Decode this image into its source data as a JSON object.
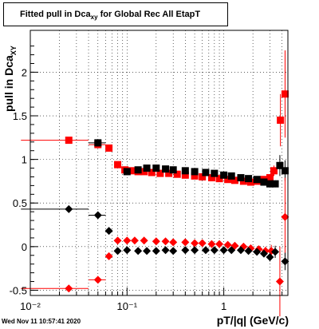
{
  "title": {
    "prefix": "Fitted pull in Dca",
    "sub": "xy",
    "suffix": " for Global Rec All EtapT"
  },
  "ylabel": {
    "prefix": "pull in Dca",
    "sub": "XY"
  },
  "xlabel": "pT/|q| (GeV/c)",
  "datestamp": "Wed Nov 11 10:57:41 2020",
  "chart_data": {
    "type": "scatter",
    "xscale": "log",
    "xlim": [
      0.01,
      4.6
    ],
    "ylim": [
      -0.56,
      2.48
    ],
    "xticks": [
      {
        "v": 0.01,
        "label": "10⁻²"
      },
      {
        "v": 0.1,
        "label": "10⁻¹"
      },
      {
        "v": 1,
        "label": "1"
      }
    ],
    "yticks": [
      -0.5,
      0,
      0.5,
      1,
      1.5,
      2
    ],
    "ytick_labels": [
      "-0.5",
      "0",
      "0.5",
      "1",
      "1.5",
      "2"
    ],
    "grid": true,
    "colors": {
      "red_series": "#ff0000",
      "black_series": "#000000"
    },
    "series": [
      {
        "marker": "square",
        "color": "#ff0000",
        "points": [
          [
            0.025,
            1.22
          ],
          [
            0.05,
            1.17
          ],
          [
            0.065,
            1.13
          ],
          [
            0.08,
            0.94
          ],
          [
            0.095,
            0.88
          ],
          [
            0.11,
            0.87
          ],
          [
            0.13,
            0.86
          ],
          [
            0.15,
            0.86
          ],
          [
            0.18,
            0.85
          ],
          [
            0.22,
            0.84
          ],
          [
            0.27,
            0.84
          ],
          [
            0.33,
            0.83
          ],
          [
            0.4,
            0.82
          ],
          [
            0.5,
            0.81
          ],
          [
            0.6,
            0.8
          ],
          [
            0.75,
            0.79
          ],
          [
            0.9,
            0.78
          ],
          [
            1.1,
            0.77
          ],
          [
            1.3,
            0.76
          ],
          [
            1.6,
            0.75
          ],
          [
            1.9,
            0.74
          ],
          [
            2.2,
            0.75
          ],
          [
            2.6,
            0.77
          ],
          [
            3.0,
            0.79
          ],
          [
            3.3,
            0.87
          ],
          [
            3.85,
            1.45
          ],
          [
            4.3,
            1.75
          ]
        ],
        "yerr": [
          0,
          0,
          0,
          0,
          0,
          0,
          0,
          0,
          0,
          0,
          0,
          0,
          0,
          0,
          0,
          0,
          0,
          0,
          0,
          0,
          0,
          0,
          0.03,
          0.04,
          0.06,
          0.3,
          0.5
        ]
      },
      {
        "marker": "square",
        "color": "#000000",
        "points": [
          [
            0.05,
            1.19
          ],
          [
            0.1,
            0.86
          ],
          [
            0.13,
            0.88
          ],
          [
            0.16,
            0.9
          ],
          [
            0.2,
            0.9
          ],
          [
            0.25,
            0.89
          ],
          [
            0.3,
            0.88
          ],
          [
            0.4,
            0.87
          ],
          [
            0.5,
            0.86
          ],
          [
            0.65,
            0.85
          ],
          [
            0.8,
            0.84
          ],
          [
            1.0,
            0.82
          ],
          [
            1.2,
            0.81
          ],
          [
            1.5,
            0.79
          ],
          [
            1.8,
            0.78
          ],
          [
            2.2,
            0.77
          ],
          [
            2.6,
            0.74
          ],
          [
            3.0,
            0.72
          ],
          [
            3.4,
            0.72
          ],
          [
            3.8,
            0.93
          ],
          [
            4.3,
            0.87
          ]
        ],
        "yerr": [
          0,
          0,
          0,
          0,
          0,
          0,
          0,
          0,
          0,
          0,
          0,
          0,
          0,
          0,
          0,
          0,
          0,
          0.03,
          0.04,
          0.12,
          0.12
        ]
      },
      {
        "marker": "diamond",
        "color": "#ff0000",
        "points": [
          [
            0.025,
            -0.48
          ],
          [
            0.05,
            -0.38
          ],
          [
            0.065,
            -0.11
          ],
          [
            0.08,
            0.07
          ],
          [
            0.1,
            0.07
          ],
          [
            0.12,
            0.07
          ],
          [
            0.15,
            0.07
          ],
          [
            0.2,
            0.06
          ],
          [
            0.25,
            0.06
          ],
          [
            0.3,
            0.05
          ],
          [
            0.4,
            0.05
          ],
          [
            0.5,
            0.04
          ],
          [
            0.6,
            0.04
          ],
          [
            0.75,
            0.03
          ],
          [
            0.9,
            0.03
          ],
          [
            1.1,
            0.02
          ],
          [
            1.3,
            0.01
          ],
          [
            1.6,
            0.0
          ],
          [
            1.9,
            -0.02
          ],
          [
            2.3,
            -0.03
          ],
          [
            2.7,
            -0.05
          ],
          [
            3.1,
            -0.05
          ],
          [
            3.8,
            -0.4
          ],
          [
            4.3,
            0.34
          ]
        ],
        "yerr": [
          0,
          0,
          0,
          0,
          0,
          0,
          0,
          0,
          0,
          0,
          0,
          0,
          0,
          0,
          0,
          0,
          0,
          0,
          0,
          0.03,
          0.05,
          0.07,
          0.4,
          0.45
        ]
      },
      {
        "marker": "diamond",
        "color": "#000000",
        "points": [
          [
            0.025,
            0.43
          ],
          [
            0.05,
            0.36
          ],
          [
            0.065,
            0.18
          ],
          [
            0.08,
            -0.05
          ],
          [
            0.1,
            -0.04
          ],
          [
            0.13,
            -0.05
          ],
          [
            0.16,
            -0.05
          ],
          [
            0.2,
            -0.05
          ],
          [
            0.25,
            -0.04
          ],
          [
            0.3,
            -0.05
          ],
          [
            0.4,
            -0.04
          ],
          [
            0.5,
            -0.04
          ],
          [
            0.65,
            -0.04
          ],
          [
            0.8,
            -0.04
          ],
          [
            1.0,
            -0.04
          ],
          [
            1.2,
            -0.04
          ],
          [
            1.5,
            -0.04
          ],
          [
            1.8,
            -0.05
          ],
          [
            2.2,
            -0.06
          ],
          [
            2.6,
            -0.08
          ],
          [
            3.0,
            -0.12
          ],
          [
            3.4,
            -0.06
          ],
          [
            4.3,
            -0.17
          ]
        ],
        "yerr": [
          0,
          0,
          0,
          0,
          0,
          0,
          0,
          0,
          0,
          0,
          0,
          0,
          0,
          0,
          0,
          0,
          0,
          0,
          0,
          0.03,
          0.05,
          0.07,
          0.1
        ]
      }
    ]
  }
}
